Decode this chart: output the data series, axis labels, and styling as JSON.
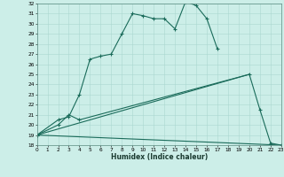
{
  "xlabel": "Humidex (Indice chaleur)",
  "background_color": "#cceee8",
  "grid_color": "#aad8d0",
  "line_color": "#1a6b5a",
  "xmin": 0,
  "xmax": 23,
  "ymin": 18,
  "ymax": 32,
  "curve1_x": [
    0,
    2,
    3,
    4,
    5,
    6,
    7,
    8,
    9,
    10,
    11,
    12,
    13,
    14,
    15,
    16,
    17
  ],
  "curve1_y": [
    19,
    20.5,
    20.8,
    23,
    26.5,
    26.8,
    27.0,
    29.0,
    31.0,
    30.8,
    30.5,
    30.5,
    29.5,
    32.2,
    31.8,
    30.5,
    27.5
  ],
  "curve2_x": [
    0,
    2,
    3,
    4,
    20,
    21,
    22,
    23
  ],
  "curve2_y": [
    19,
    20.0,
    21.0,
    20.5,
    25.0,
    21.5,
    18.2,
    18.0
  ],
  "line3_x": [
    0,
    20
  ],
  "line3_y": [
    19,
    25.0
  ],
  "line4_x": [
    0,
    23
  ],
  "line4_y": [
    19,
    18.0
  ]
}
